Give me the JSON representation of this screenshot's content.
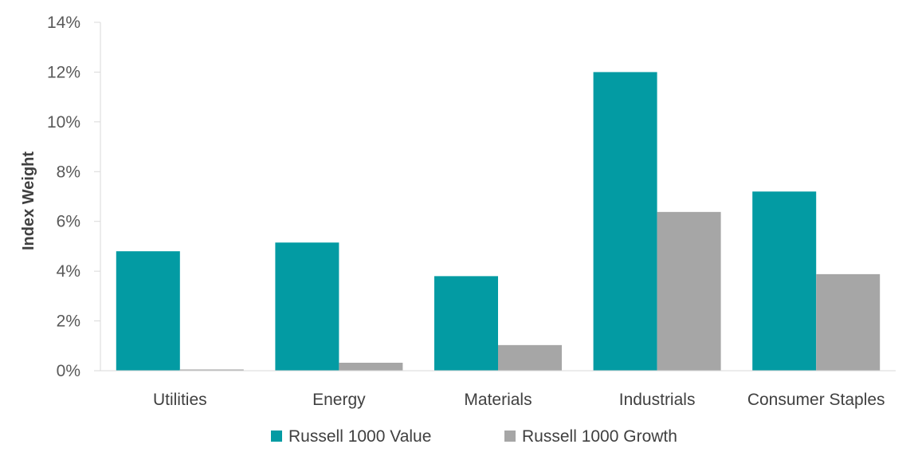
{
  "chart_data": {
    "type": "bar",
    "ylabel": "Index Weight",
    "xlabel": "",
    "categories": [
      "Utilities",
      "Energy",
      "Materials",
      "Industrials",
      "Consumer Staples"
    ],
    "series": [
      {
        "name": "Russell 1000 Value",
        "values": [
          4.8,
          5.15,
          3.8,
          12.0,
          7.2
        ],
        "color": "#039ba3"
      },
      {
        "name": "Russell 1000 Growth",
        "values": [
          0.05,
          0.32,
          1.03,
          6.38,
          3.88
        ],
        "color": "#a6a6a6"
      }
    ],
    "ylim": [
      0,
      14
    ],
    "yticks": [
      0,
      2,
      4,
      6,
      8,
      10,
      12,
      14
    ],
    "ytick_labels": [
      "0%",
      "2%",
      "4%",
      "6%",
      "8%",
      "10%",
      "12%",
      "14%"
    ],
    "grid": false,
    "legend_position": "bottom"
  }
}
